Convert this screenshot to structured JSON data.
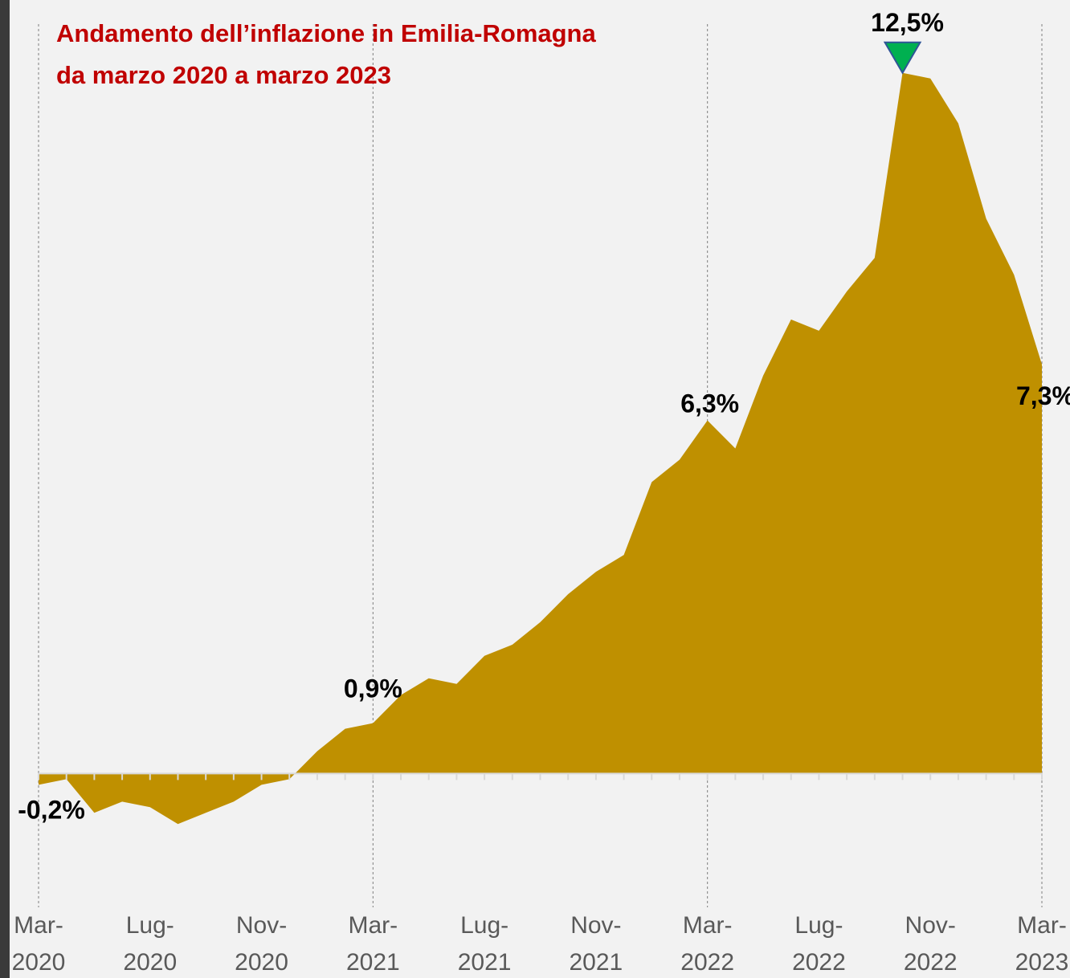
{
  "chart_data": {
    "type": "area",
    "title": "Andamento dell’inflazione in Emilia-Romagna",
    "subtitle": "da marzo 2020 a marzo 2023",
    "categories": [
      "Mar-\n2020",
      null,
      null,
      null,
      "Lug-\n2020",
      null,
      null,
      null,
      "Nov-\n2020",
      null,
      null,
      null,
      "Mar-\n2021",
      null,
      null,
      null,
      "Lug-\n2021",
      null,
      null,
      null,
      "Nov-\n2021",
      null,
      null,
      null,
      "Mar-\n2022",
      null,
      null,
      null,
      "Lug-\n2022",
      null,
      null,
      null,
      "Nov-\n2022",
      null,
      null,
      null,
      "Mar-\n2023"
    ],
    "values": [
      -0.2,
      -0.1,
      -0.7,
      -0.5,
      -0.6,
      -0.9,
      -0.7,
      -0.5,
      -0.2,
      -0.1,
      0.4,
      0.8,
      0.9,
      1.4,
      1.7,
      1.6,
      2.1,
      2.3,
      2.7,
      3.2,
      3.6,
      3.9,
      5.2,
      5.6,
      6.3,
      5.8,
      7.1,
      8.1,
      7.9,
      8.6,
      9.2,
      12.5,
      12.4,
      11.6,
      9.9,
      8.9,
      7.3
    ],
    "value_labels": [
      "-0,2%",
      null,
      null,
      null,
      null,
      null,
      null,
      null,
      null,
      null,
      null,
      null,
      "0,9%",
      null,
      null,
      null,
      null,
      null,
      null,
      null,
      null,
      null,
      null,
      null,
      "6,3%",
      null,
      null,
      null,
      null,
      null,
      null,
      "12,5%",
      null,
      null,
      null,
      null,
      "7,3%"
    ],
    "color": "#bf9000",
    "ylim": [
      -2.2,
      13.8
    ]
  }
}
